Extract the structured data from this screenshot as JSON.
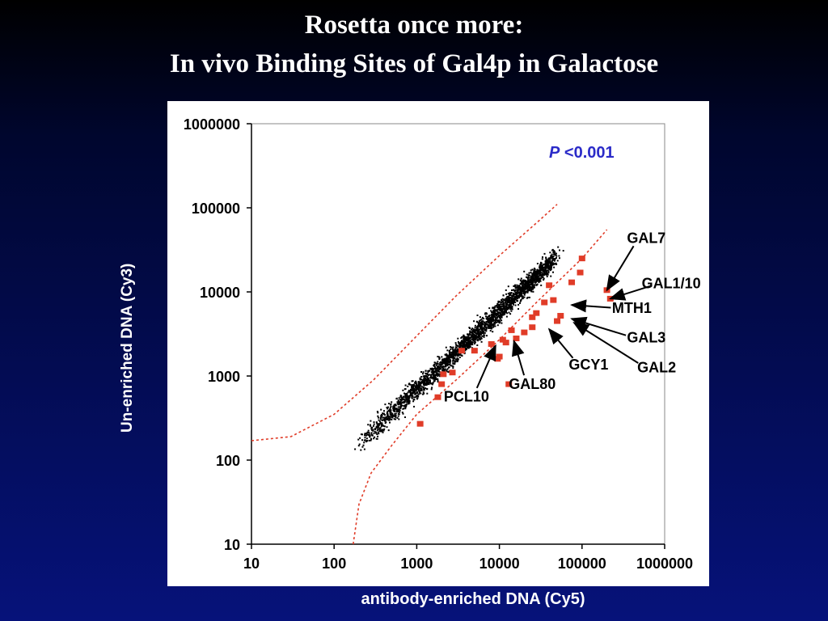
{
  "title_line1": "Rosetta once more:",
  "title_line2": "In vivo Binding Sites of Gal4p in Galactose",
  "chart_data": {
    "type": "scatter",
    "xlabel": "antibody-enriched DNA (Cy5)",
    "ylabel": "Un-enriched DNA (Cy3)",
    "xscale": "log",
    "yscale": "log",
    "xlim": [
      10,
      1000000
    ],
    "ylim": [
      10,
      1000000
    ],
    "xticks": [
      "10",
      "100",
      "1000",
      "10000",
      "100000",
      "1000000"
    ],
    "yticks": [
      "10",
      "100",
      "1000",
      "10000",
      "100000",
      "1000000"
    ],
    "annotation": {
      "italic": "P",
      "text": " <0.001"
    },
    "colors": {
      "background_points": "#000000",
      "significant_points": "#e03c28",
      "threshold": "#e03c28",
      "annotation": "#2b2bc8"
    },
    "threshold_upper": [
      [
        10,
        170
      ],
      [
        30,
        190
      ],
      [
        100,
        350
      ],
      [
        300,
        900
      ],
      [
        1000,
        3000
      ],
      [
        3000,
        9000
      ],
      [
        10000,
        27000
      ],
      [
        30000,
        70000
      ],
      [
        50000,
        110000
      ]
    ],
    "threshold_lower": [
      [
        170,
        10
      ],
      [
        200,
        30
      ],
      [
        280,
        70
      ],
      [
        500,
        150
      ],
      [
        1000,
        350
      ],
      [
        3000,
        900
      ],
      [
        10000,
        2700
      ],
      [
        30000,
        8000
      ],
      [
        100000,
        25000
      ],
      [
        200000,
        55000
      ]
    ],
    "significant_points": [
      [
        1100,
        270
      ],
      [
        1800,
        560
      ],
      [
        2000,
        800
      ],
      [
        2100,
        1050
      ],
      [
        2700,
        1100
      ],
      [
        3500,
        2000
      ],
      [
        5000,
        2000
      ],
      [
        8000,
        2400
      ],
      [
        9500,
        1600
      ],
      [
        10000,
        1700
      ],
      [
        11000,
        2700
      ],
      [
        12000,
        2500
      ],
      [
        13000,
        800
      ],
      [
        14000,
        3500
      ],
      [
        16000,
        2800
      ],
      [
        20000,
        3300
      ],
      [
        25000,
        3800
      ],
      [
        25000,
        5000
      ],
      [
        28000,
        5600
      ],
      [
        35000,
        7500
      ],
      [
        40000,
        12000
      ],
      [
        45000,
        8000
      ],
      [
        50000,
        4500
      ],
      [
        55000,
        5200
      ],
      [
        75000,
        13000
      ],
      [
        95000,
        17000
      ],
      [
        100000,
        25000
      ],
      [
        200000,
        10500
      ],
      [
        220000,
        8300
      ]
    ],
    "labels": [
      {
        "text": "GAL7",
        "x": 600000,
        "y": 38000,
        "point": [
          200000,
          10500
        ]
      },
      {
        "text": "GAL1/10",
        "x": 1200000,
        "y": 11000,
        "point": [
          220000,
          8300
        ]
      },
      {
        "text": "MTH1",
        "x": 400000,
        "y": 5600,
        "point": [
          75000,
          7000
        ]
      },
      {
        "text": "GAL3",
        "x": 600000,
        "y": 2500,
        "point": [
          75000,
          4800
        ]
      },
      {
        "text": "GAL2",
        "x": 800000,
        "y": 1100,
        "point": [
          80000,
          4300
        ]
      },
      {
        "text": "GCY1",
        "x": 120000,
        "y": 1200,
        "point": [
          40000,
          3600
        ]
      },
      {
        "text": "GAL80",
        "x": 25000,
        "y": 700,
        "point": [
          15000,
          2600
        ]
      },
      {
        "text": "PCL10",
        "x": 4000,
        "y": 500,
        "point": [
          9000,
          2300
        ]
      }
    ]
  }
}
